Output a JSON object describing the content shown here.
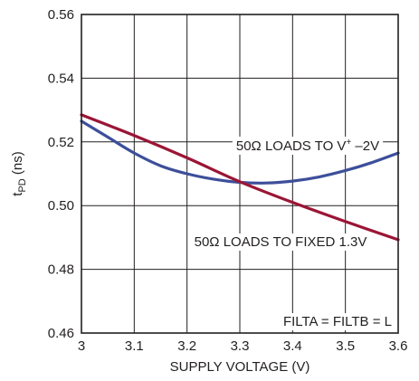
{
  "chart_data": {
    "type": "line",
    "title": "",
    "xlabel": "SUPPLY VOLTAGE (V)",
    "ylabel": {
      "main": "t",
      "sub": "PD",
      "unit": " (ns)"
    },
    "xlim": [
      3.0,
      3.6
    ],
    "ylim": [
      0.46,
      0.56
    ],
    "x_ticks": [
      "3",
      "3.1",
      "3.2",
      "3.3",
      "3.4",
      "3.5",
      "3.6"
    ],
    "y_ticks": [
      "0.46",
      "0.48",
      "0.50",
      "0.52",
      "0.54",
      "0.56"
    ],
    "grid": true,
    "colors": {
      "blue": "#3d4f9a",
      "red": "#9b1535",
      "grid": "#231f20"
    },
    "series": [
      {
        "label": {
          "pre": "50Ω LOADS TO V",
          "sup": "+",
          "post": " –2V"
        },
        "color": "#3d4f9a",
        "x": [
          3.0,
          3.05,
          3.1,
          3.15,
          3.2,
          3.25,
          3.3,
          3.35,
          3.4,
          3.45,
          3.5,
          3.55,
          3.6
        ],
        "y": [
          0.5265,
          0.5215,
          0.5165,
          0.5125,
          0.51,
          0.5083,
          0.5073,
          0.5071,
          0.5077,
          0.509,
          0.511,
          0.5135,
          0.5165
        ]
      },
      {
        "label": "50Ω LOADS TO FIXED 1.3V",
        "color": "#9b1535",
        "x": [
          3.0,
          3.1,
          3.2,
          3.3,
          3.4,
          3.5,
          3.6
        ],
        "y": [
          0.5285,
          0.522,
          0.515,
          0.5075,
          0.501,
          0.495,
          0.4893
        ]
      }
    ],
    "annotation": "FILTA = FILTB = L"
  }
}
